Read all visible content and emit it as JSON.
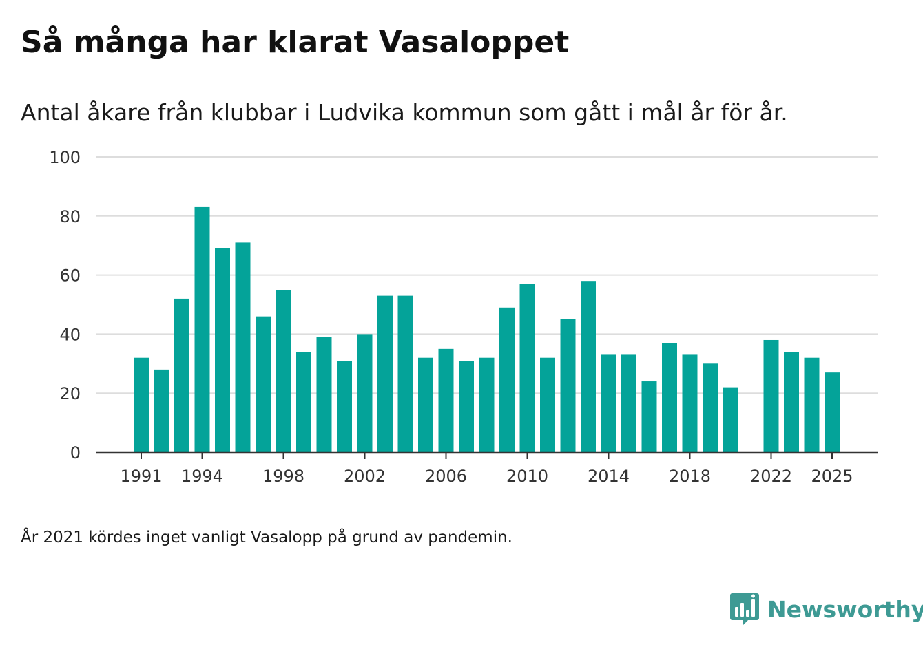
{
  "title": "Så många har klarat Vasaloppet",
  "subtitle": "Antal åkare från klubbar i Ludvika kommun som gått i mål år för år.",
  "footnote": "År 2021 kördes inget vanligt Vasalopp på grund av pandemin.",
  "brand": {
    "name": "Newsworthy",
    "color": "#3e9a94",
    "icon": "newsworthy-logo-icon"
  },
  "colors": {
    "bar": "#04a399",
    "grid": "#dddddd",
    "axis": "#333333"
  },
  "chart_data": {
    "type": "bar",
    "title": "Så många har klarat Vasaloppet",
    "xlabel": "",
    "ylabel": "",
    "ylim": [
      0,
      100
    ],
    "yticks": [
      0,
      20,
      40,
      60,
      80,
      100
    ],
    "grid": true,
    "categories": [
      1991,
      1992,
      1993,
      1994,
      1995,
      1996,
      1997,
      1998,
      1999,
      2000,
      2001,
      2002,
      2003,
      2004,
      2005,
      2006,
      2007,
      2008,
      2009,
      2010,
      2011,
      2012,
      2013,
      2014,
      2015,
      2016,
      2017,
      2018,
      2019,
      2020,
      2021,
      2022,
      2023,
      2024,
      2025
    ],
    "values": [
      32,
      28,
      52,
      83,
      69,
      71,
      46,
      55,
      34,
      39,
      31,
      40,
      53,
      53,
      32,
      35,
      31,
      32,
      49,
      57,
      32,
      45,
      58,
      33,
      33,
      24,
      37,
      33,
      30,
      22,
      null,
      38,
      34,
      32,
      27
    ],
    "xticks": [
      "1991",
      "1994",
      "1998",
      "2002",
      "2006",
      "2010",
      "2014",
      "2018",
      "2022",
      "2025"
    ]
  }
}
